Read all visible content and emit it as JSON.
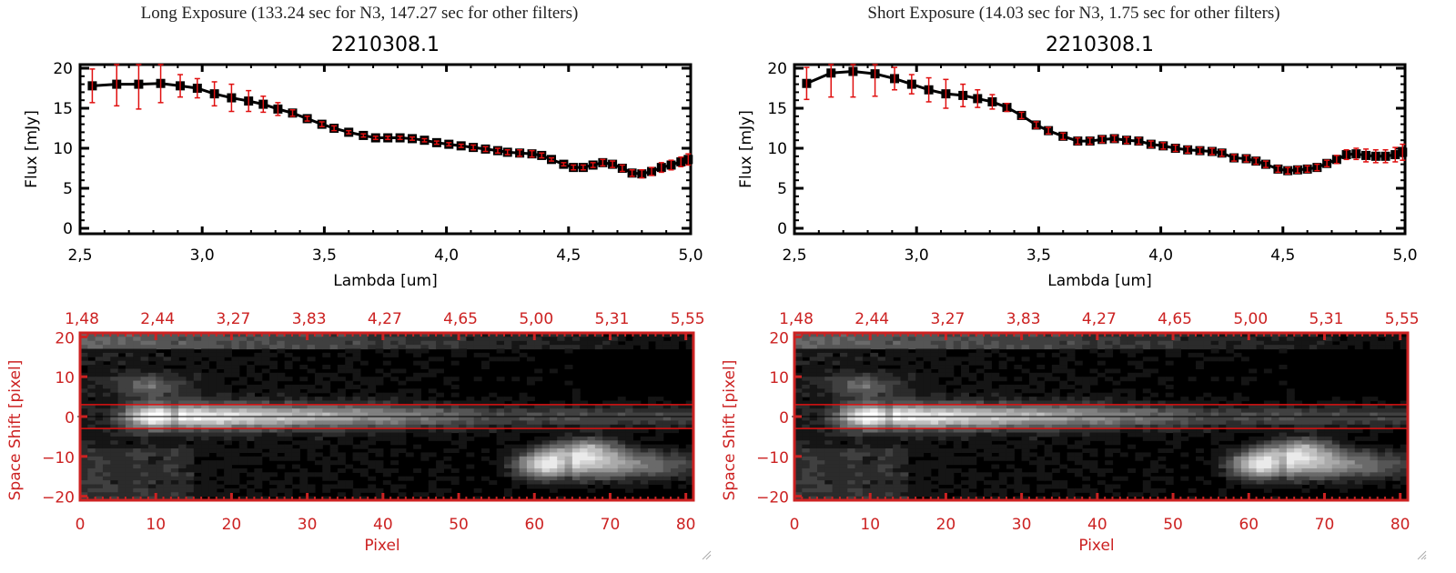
{
  "panels": [
    {
      "id": "long",
      "exposure_title": "Long Exposure (133.24 sec for N3, 147.27 sec for other filters)",
      "spectrum_title": "2210308.1",
      "xlabel": "Lambda [um]",
      "ylabel": "Flux [mJy]",
      "image_xlabel": "Pixel",
      "image_ylabel": "Space Shift [pixel]"
    },
    {
      "id": "short",
      "exposure_title": "Short Exposure (14.03 sec for N3, 1.75 sec for other filters)",
      "spectrum_title": "2210308.1",
      "xlabel": "Lambda [um]",
      "ylabel": "Flux [mJy]",
      "image_xlabel": "Pixel",
      "image_ylabel": "Space Shift [pixel]"
    }
  ],
  "colors": {
    "line": "#000000",
    "errorbar": "#e01010",
    "image_axis": "#cc2222",
    "aperture_line": "#dd1111",
    "center_line": "#000000"
  },
  "chart_data": [
    {
      "type": "line",
      "panel": "long",
      "title": "2210308.1",
      "xlabel": "Lambda [um]",
      "ylabel": "Flux [mJy]",
      "xlim": [
        2.5,
        5.0
      ],
      "ylim": [
        0,
        20
      ],
      "xticks": [
        "2.5",
        "3.0",
        "3.5",
        "4.0",
        "4.5",
        "5.0"
      ],
      "yticks": [
        "0",
        "5",
        "10",
        "15",
        "20"
      ],
      "x": [
        2.55,
        2.65,
        2.74,
        2.83,
        2.91,
        2.98,
        3.05,
        3.12,
        3.19,
        3.25,
        3.31,
        3.37,
        3.43,
        3.49,
        3.54,
        3.6,
        3.66,
        3.71,
        3.76,
        3.81,
        3.86,
        3.91,
        3.96,
        4.01,
        4.06,
        4.11,
        4.16,
        4.21,
        4.25,
        4.3,
        4.35,
        4.39,
        4.43,
        4.48,
        4.52,
        4.56,
        4.6,
        4.64,
        4.68,
        4.72,
        4.76,
        4.8,
        4.84,
        4.88,
        4.92,
        4.96,
        4.99
      ],
      "y": [
        17.8,
        18.0,
        18.0,
        18.1,
        17.8,
        17.5,
        16.8,
        16.3,
        15.9,
        15.5,
        14.9,
        14.4,
        13.7,
        13.0,
        12.5,
        12.0,
        11.6,
        11.3,
        11.3,
        11.3,
        11.2,
        11.0,
        10.7,
        10.5,
        10.3,
        10.1,
        9.9,
        9.7,
        9.5,
        9.4,
        9.3,
        9.1,
        8.6,
        8.0,
        7.6,
        7.6,
        7.9,
        8.2,
        8.0,
        7.5,
        6.9,
        6.8,
        7.1,
        7.6,
        7.9,
        8.3,
        8.6
      ],
      "yerr": [
        2.1,
        2.7,
        3.1,
        2.4,
        1.4,
        1.2,
        1.5,
        1.7,
        1.3,
        1.0,
        0.8,
        0.4,
        0.3,
        0.3,
        0.3,
        0.2,
        0.2,
        0.2,
        0.2,
        0.2,
        0.2,
        0.2,
        0.2,
        0.2,
        0.2,
        0.3,
        0.3,
        0.3,
        0.3,
        0.4,
        0.4,
        0.3,
        0.2,
        0.2,
        0.3,
        0.3,
        0.3,
        0.4,
        0.4,
        0.4,
        0.4,
        0.5,
        0.5,
        0.6,
        0.6,
        0.6,
        0.7
      ]
    },
    {
      "type": "line",
      "panel": "short",
      "title": "2210308.1",
      "xlabel": "Lambda [um]",
      "ylabel": "Flux [mJy]",
      "xlim": [
        2.5,
        5.0
      ],
      "ylim": [
        0,
        20
      ],
      "xticks": [
        "2.5",
        "3.0",
        "3.5",
        "4.0",
        "4.5",
        "5.0"
      ],
      "yticks": [
        "0",
        "5",
        "10",
        "15",
        "20"
      ],
      "x": [
        2.55,
        2.65,
        2.74,
        2.83,
        2.91,
        2.98,
        3.05,
        3.12,
        3.19,
        3.25,
        3.31,
        3.37,
        3.43,
        3.49,
        3.54,
        3.6,
        3.66,
        3.71,
        3.76,
        3.81,
        3.86,
        3.91,
        3.96,
        4.01,
        4.06,
        4.11,
        4.16,
        4.21,
        4.25,
        4.3,
        4.35,
        4.39,
        4.43,
        4.48,
        4.52,
        4.56,
        4.6,
        4.64,
        4.68,
        4.72,
        4.76,
        4.8,
        4.84,
        4.88,
        4.92,
        4.96,
        4.99
      ],
      "y": [
        18.1,
        19.4,
        19.6,
        19.3,
        18.7,
        18.0,
        17.3,
        16.8,
        16.6,
        16.2,
        15.8,
        15.1,
        14.1,
        12.9,
        12.2,
        11.5,
        10.9,
        10.9,
        11.1,
        11.2,
        11.0,
        10.9,
        10.5,
        10.3,
        10.0,
        9.8,
        9.7,
        9.6,
        9.4,
        8.8,
        8.7,
        8.4,
        8.0,
        7.4,
        7.2,
        7.3,
        7.4,
        7.6,
        8.1,
        8.6,
        9.2,
        9.3,
        9.1,
        9.0,
        9.0,
        9.2,
        9.5
      ],
      "yerr": [
        2.0,
        3.0,
        3.2,
        2.8,
        1.4,
        1.2,
        1.5,
        1.8,
        1.4,
        1.1,
        0.9,
        0.5,
        0.4,
        0.4,
        0.4,
        0.4,
        0.4,
        0.4,
        0.4,
        0.4,
        0.4,
        0.4,
        0.4,
        0.4,
        0.4,
        0.4,
        0.4,
        0.4,
        0.4,
        0.4,
        0.4,
        0.4,
        0.4,
        0.4,
        0.4,
        0.4,
        0.4,
        0.4,
        0.4,
        0.5,
        0.6,
        0.7,
        0.8,
        0.8,
        0.8,
        0.9,
        1.0
      ]
    },
    {
      "type": "heatmap",
      "panel": "long",
      "xlabel": "Pixel",
      "ylabel": "Space Shift [pixel]",
      "xlim": [
        0,
        81
      ],
      "ylim": [
        -21,
        21
      ],
      "xticks": [
        "0",
        "10",
        "20",
        "30",
        "40",
        "50",
        "60",
        "70",
        "80"
      ],
      "yticks": [
        "-20",
        "-10",
        "0",
        "10",
        "20"
      ],
      "top_axis_label_values": [
        "1.48",
        "2.44",
        "3.27",
        "3.83",
        "4.27",
        "4.65",
        "5.00",
        "5.31",
        "5.55"
      ],
      "aperture_lines": [
        -3,
        3
      ],
      "center_line": 0,
      "sources": [
        {
          "x": 10,
          "y": 0,
          "peak": 1.0,
          "sx": 3,
          "sy": 2.2,
          "tail_to": 55
        },
        {
          "x": 9,
          "y": 8,
          "peak": 0.35,
          "sx": 3,
          "sy": 2
        },
        {
          "x": 62,
          "y": -12,
          "peak": 0.95,
          "sx": 3,
          "sy": 2.6,
          "tail_to": 81
        },
        {
          "x": 67,
          "y": -8,
          "peak": 0.55,
          "sx": 3,
          "sy": 2
        }
      ],
      "background_top_rows": 0.3
    },
    {
      "type": "heatmap",
      "panel": "short",
      "xlabel": "Pixel",
      "ylabel": "Space Shift [pixel]",
      "xlim": [
        0,
        81
      ],
      "ylim": [
        -21,
        21
      ],
      "xticks": [
        "0",
        "10",
        "20",
        "30",
        "40",
        "50",
        "60",
        "70",
        "80"
      ],
      "yticks": [
        "-20",
        "-10",
        "0",
        "10",
        "20"
      ],
      "top_axis_label_values": [
        "1.48",
        "2.44",
        "3.27",
        "3.83",
        "4.27",
        "4.65",
        "5.00",
        "5.31",
        "5.55"
      ],
      "aperture_lines": [
        -3,
        3
      ],
      "center_line": 0,
      "sources": [
        {
          "x": 10,
          "y": 0,
          "peak": 1.0,
          "sx": 3,
          "sy": 2.2,
          "tail_to": 55
        },
        {
          "x": 9,
          "y": 8,
          "peak": 0.35,
          "sx": 3,
          "sy": 2
        },
        {
          "x": 62,
          "y": -12,
          "peak": 0.95,
          "sx": 3,
          "sy": 2.6,
          "tail_to": 81
        },
        {
          "x": 67,
          "y": -8,
          "peak": 0.55,
          "sx": 3,
          "sy": 2
        }
      ],
      "background_top_rows": 0.3
    }
  ]
}
